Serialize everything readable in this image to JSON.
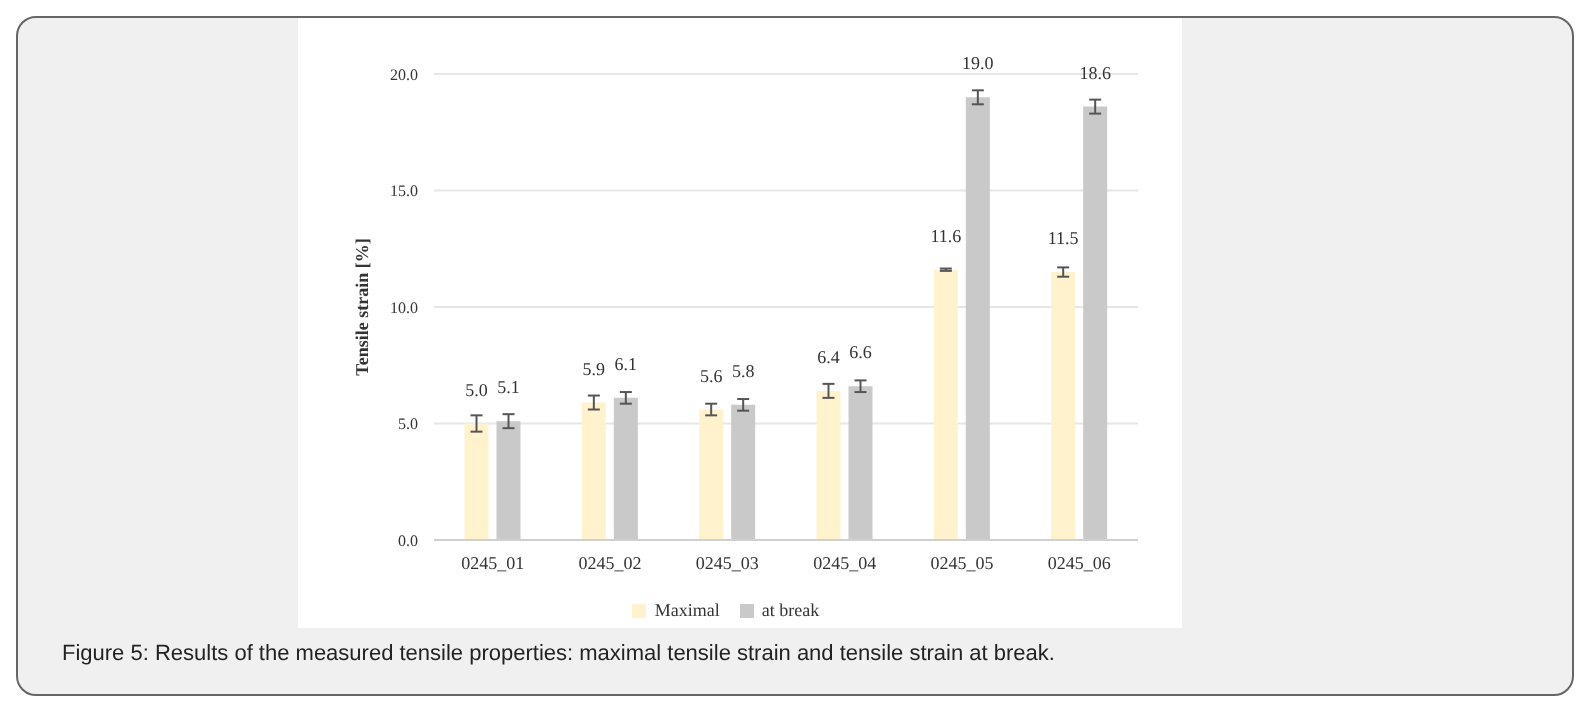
{
  "chart_data": {
    "type": "bar",
    "ylabel": "Tensile strain [%]",
    "categories": [
      "0245_01",
      "0245_02",
      "0245_03",
      "0245_04",
      "0245_05",
      "0245_06"
    ],
    "series": [
      {
        "name": "Maximal",
        "color": "#fff2cc",
        "values": [
          5.0,
          5.9,
          5.6,
          6.4,
          11.6,
          11.5
        ],
        "errors": [
          0.35,
          0.3,
          0.25,
          0.3,
          0.05,
          0.2
        ],
        "value_labels": [
          "5.0",
          "5.9",
          "5.6",
          "6.4",
          "11.6",
          "11.5"
        ]
      },
      {
        "name": "at break",
        "color": "#c9c9c9",
        "values": [
          5.1,
          6.1,
          5.8,
          6.6,
          19.0,
          18.6
        ],
        "errors": [
          0.3,
          0.25,
          0.25,
          0.25,
          0.3,
          0.3
        ],
        "value_labels": [
          "5.1",
          "6.1",
          "5.8",
          "6.6",
          "19.0",
          "18.6"
        ]
      }
    ],
    "ylim": [
      0,
      20
    ],
    "yticks": [
      {
        "value": 0,
        "label": "0.0"
      },
      {
        "value": 5,
        "label": "5.0"
      },
      {
        "value": 10,
        "label": "10.0"
      },
      {
        "value": 15,
        "label": "15.0"
      },
      {
        "value": 20,
        "label": "20.0"
      }
    ],
    "grid": "y",
    "legend": "bottom",
    "annotations": [
      "Figure 5: Results of the measured tensile properties: maximal tensile strain and tensile strain at break."
    ]
  }
}
